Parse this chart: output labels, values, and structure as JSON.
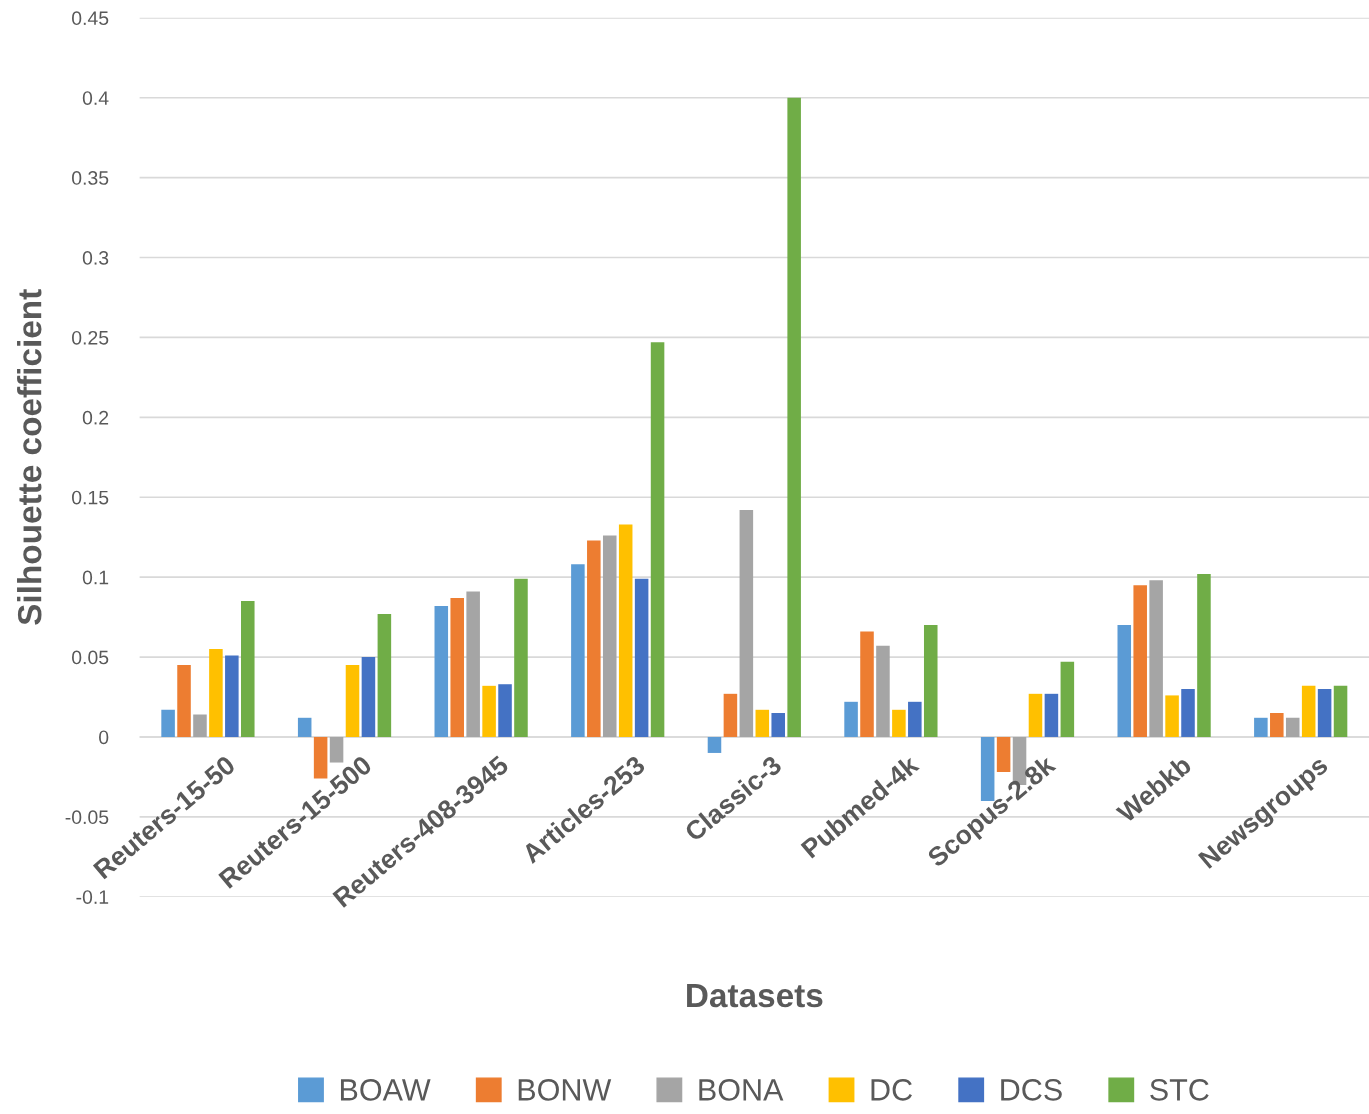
{
  "chart_data": {
    "type": "bar",
    "xlabel": "Datasets",
    "ylabel": "Silhouette coefficient",
    "categories": [
      "Reuters-15-50",
      "Reuters-15-500",
      "Reuters-408-3945",
      "Articles-253",
      "Classic-3",
      "Pubmed-4k",
      "Scopus-2.8k",
      "Webkb",
      "Newsgroups"
    ],
    "series": [
      {
        "name": "BOAW",
        "color": "#5b9bd5",
        "values": [
          0.017,
          0.012,
          0.082,
          0.108,
          -0.01,
          0.022,
          -0.04,
          0.07,
          0.012
        ]
      },
      {
        "name": "BONW",
        "color": "#ed7d31",
        "values": [
          0.045,
          -0.026,
          0.087,
          0.123,
          0.027,
          0.066,
          -0.022,
          0.095,
          0.015
        ]
      },
      {
        "name": "BONA",
        "color": "#a5a5a5",
        "values": [
          0.014,
          -0.016,
          0.091,
          0.126,
          0.142,
          0.057,
          -0.03,
          0.098,
          0.012
        ]
      },
      {
        "name": "DC",
        "color": "#ffc000",
        "values": [
          0.055,
          0.045,
          0.032,
          0.133,
          0.017,
          0.017,
          0.027,
          0.026,
          0.032
        ]
      },
      {
        "name": "DCS",
        "color": "#4472c4",
        "values": [
          0.051,
          0.05,
          0.033,
          0.099,
          0.015,
          0.022,
          0.027,
          0.03,
          0.03
        ]
      },
      {
        "name": "STC",
        "color": "#70ad47",
        "values": [
          0.085,
          0.077,
          0.099,
          0.247,
          0.4,
          0.07,
          0.047,
          0.102,
          0.032
        ]
      }
    ],
    "ylim": [
      -0.1,
      0.45
    ],
    "yticks": [
      -0.1,
      -0.05,
      0,
      0.05,
      0.1,
      0.15,
      0.2,
      0.25,
      0.3,
      0.35,
      0.4,
      0.45
    ],
    "grid": "y",
    "legend": "bottom"
  }
}
